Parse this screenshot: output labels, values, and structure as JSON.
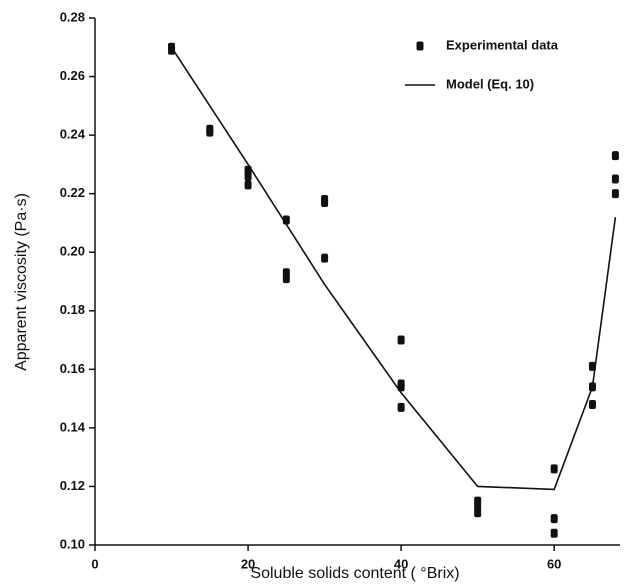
{
  "chart_data": {
    "type": "scatter",
    "xlabel": "Soluble solids content ( °Brix)",
    "ylabel": "Apparent viscosity (Pa·s)",
    "xlim": [
      0,
      68.6
    ],
    "ylim": [
      0.1,
      0.28
    ],
    "xticks": [
      0,
      20,
      40,
      60
    ],
    "yticks": [
      {
        "value": 0.1,
        "label": "0.10"
      },
      0.12,
      0.14,
      0.16,
      0.18,
      {
        "value": 0.2,
        "label": "0.20"
      },
      0.22,
      0.24,
      0.26,
      0.28
    ],
    "legend": "upper right",
    "series": [
      {
        "name": "Experimental data",
        "mode": "markers",
        "color": "#111111",
        "x": [
          10,
          10,
          15,
          15,
          20,
          20,
          20,
          25,
          25,
          25,
          30,
          30,
          30,
          40,
          40,
          40,
          40,
          50,
          50,
          50,
          60,
          60,
          60,
          65,
          65,
          65,
          68,
          68,
          68
        ],
        "values": [
          0.27,
          0.269,
          0.242,
          0.241,
          0.228,
          0.226,
          0.223,
          0.211,
          0.193,
          0.191,
          0.218,
          0.217,
          0.198,
          0.17,
          0.155,
          0.154,
          0.147,
          0.115,
          0.113,
          0.111,
          0.126,
          0.109,
          0.104,
          0.161,
          0.154,
          0.148,
          0.233,
          0.225,
          0.22
        ]
      },
      {
        "name": "Model (Eq. 10)",
        "mode": "line",
        "color": "#111111",
        "x": [
          10,
          20,
          30,
          40,
          50,
          60,
          65,
          68
        ],
        "values": [
          0.27,
          0.23,
          0.189,
          0.152,
          0.12,
          0.119,
          0.154,
          0.212
        ]
      }
    ]
  }
}
